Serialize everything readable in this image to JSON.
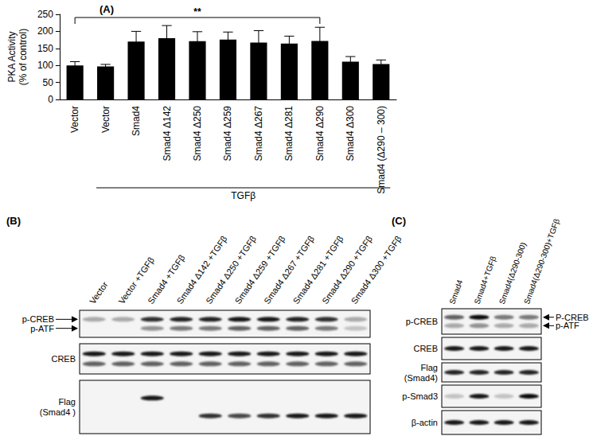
{
  "chart_data": {
    "type": "bar",
    "title": "(A)",
    "y_label": "PKA Activity\n(% of control)",
    "categories": [
      "Vector",
      "Vector",
      "Smad4",
      "Smad4 Δ142",
      "Smad4 Δ250",
      "Smad4 Δ259",
      "Smad4 Δ267",
      "Smad4 Δ281",
      "Smad4 Δ290",
      "Smad4 Δ300",
      "Smad4 (Δ290 – 300)"
    ],
    "values": [
      100,
      97,
      170,
      180,
      171,
      176,
      167,
      164,
      172,
      111,
      104
    ],
    "errors": [
      11,
      6,
      30,
      37,
      28,
      22,
      35,
      22,
      40,
      15,
      12
    ],
    "color": "#000000",
    "ylim": [
      0,
      250
    ],
    "yticks": [
      0,
      50,
      100,
      150,
      200,
      250
    ],
    "grid": false,
    "annotations": [
      {
        "text": "**",
        "from": 0,
        "to": 8
      },
      {
        "text": "TGFβ",
        "from": 1,
        "to": 10
      }
    ]
  },
  "panels": [
    {
      "label": "(B)",
      "arrow_side": "left",
      "lanes": [
        "Vector",
        "Vector +TGFβ",
        "Smad4 +TGFβ",
        "Smad4 Δ142 +TGFβ",
        "Smad4 Δ250 +TGFβ",
        "Smad4 Δ259 +TGFβ",
        "Smad4 Δ267 +TGFβ",
        "Smad4 Δ281 +TGFβ",
        "Smad4 Δ290 +TGFβ",
        "Smad4 Δ300 +TGFβ"
      ],
      "blots": [
        {
          "bands": [
            {
              "label": "p-CREB",
              "intensity": [
                0.3,
                0.3,
                0.8,
                0.85,
                0.85,
                0.9,
                0.9,
                0.85,
                0.8,
                0.3
              ]
            },
            {
              "label": "p-ATF",
              "intensity": [
                0,
                0,
                0.4,
                0.5,
                0.5,
                0.6,
                0.6,
                0.6,
                0.5,
                0.2
              ]
            }
          ]
        },
        {
          "name": "CREB",
          "bands": [
            {
              "intensity": [
                0.9,
                0.9,
                0.9,
                0.9,
                0.9,
                0.9,
                0.9,
                0.9,
                0.9,
                0.9
              ]
            },
            {
              "intensity": [
                0.6,
                0.6,
                0.6,
                0.6,
                0.6,
                0.6,
                0.6,
                0.6,
                0.6,
                0.6
              ]
            }
          ]
        },
        {
          "name": "Flag\n(Smad4 )",
          "bands": [
            {
              "intensity": [
                0,
                0,
                0.9,
                0,
                0,
                0,
                0,
                0,
                0,
                0
              ]
            },
            {
              "intensity": [
                0,
                0,
                0,
                0,
                0.8,
                0.7,
                0.8,
                0.9,
                0.9,
                0.9
              ]
            }
          ]
        }
      ]
    },
    {
      "label": "(C)",
      "arrow_side": "right",
      "lanes": [
        "Smad4",
        "Smad4+TGFβ",
        "Smad4(Δ290-300)",
        "Smad4(Δ290-300)+TGFβ"
      ],
      "blots": [
        {
          "name": "p-CREB",
          "bands": [
            {
              "label": "P-CREB",
              "intensity": [
                0.6,
                0.95,
                0.5,
                0.5
              ]
            },
            {
              "label": "p-ATF",
              "intensity": [
                0.3,
                0.4,
                0.3,
                0.3
              ]
            }
          ]
        },
        {
          "name": "CREB",
          "bands": [
            {
              "intensity": [
                0.9,
                0.9,
                0.9,
                0.9
              ]
            }
          ]
        },
        {
          "name": "Flag\n(Smad4)",
          "bands": [
            {
              "intensity": [
                0.85,
                0.85,
                0.85,
                0.85
              ]
            }
          ]
        },
        {
          "name": "p-Smad3",
          "bands": [
            {
              "intensity": [
                0.2,
                0.9,
                0.2,
                0.95
              ]
            }
          ]
        },
        {
          "name": "β-actin",
          "bands": [
            {
              "intensity": [
                0.9,
                0.9,
                0.9,
                0.9
              ]
            }
          ]
        }
      ]
    }
  ]
}
